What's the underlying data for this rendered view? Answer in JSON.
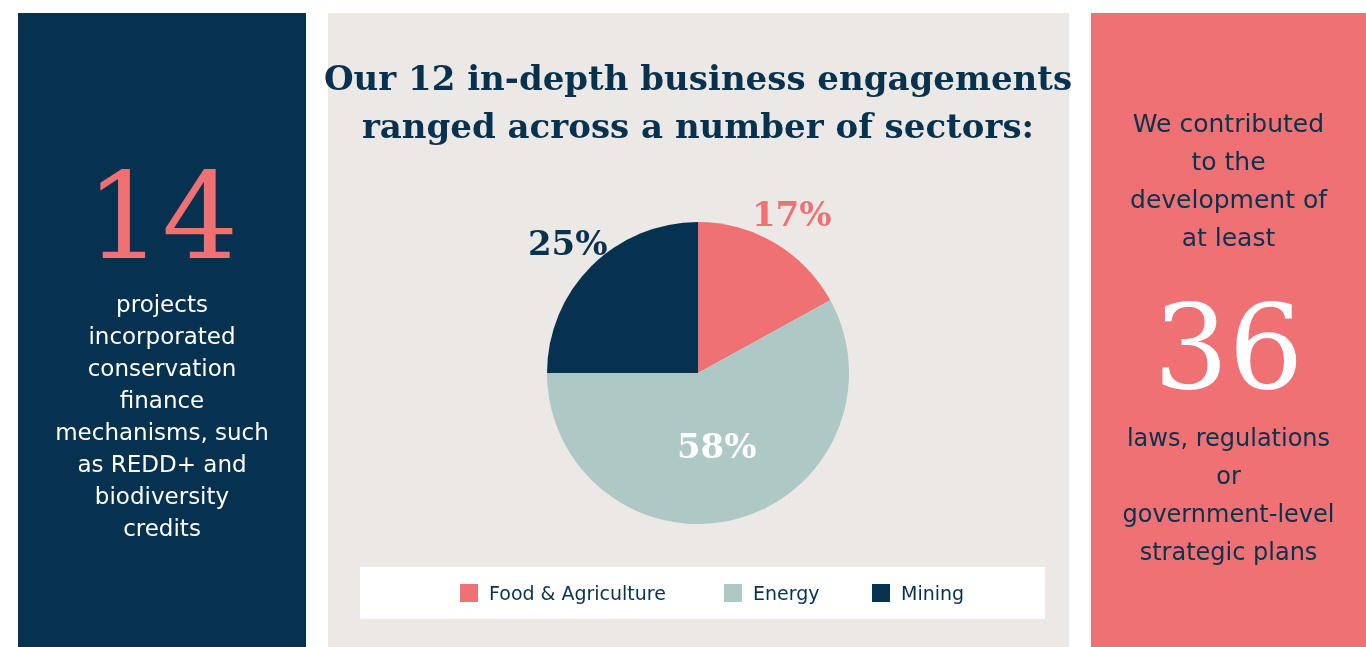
{
  "chart_data": [
    {
      "type": "other",
      "title": "14",
      "annotations": [
        "projects incorporated conservation finance mechanisms, such as REDD+ and biodiversity credits"
      ]
    },
    {
      "type": "pie",
      "title": "Our 12 in-depth business engagements ranged across a number of sectors:",
      "categories": [
        "Food & Agriculture",
        "Energy",
        "Mining"
      ],
      "values": [
        17,
        58,
        25
      ],
      "colors": [
        "#f07173",
        "#aec9c5",
        "#06324f"
      ],
      "value_labels": [
        "17%",
        "58%",
        "25%"
      ],
      "legend": "bottom"
    },
    {
      "type": "other",
      "title": "36",
      "annotations": [
        "We contributed to the development of at least",
        "laws, regulations or government-level strategic plans"
      ]
    }
  ]
}
